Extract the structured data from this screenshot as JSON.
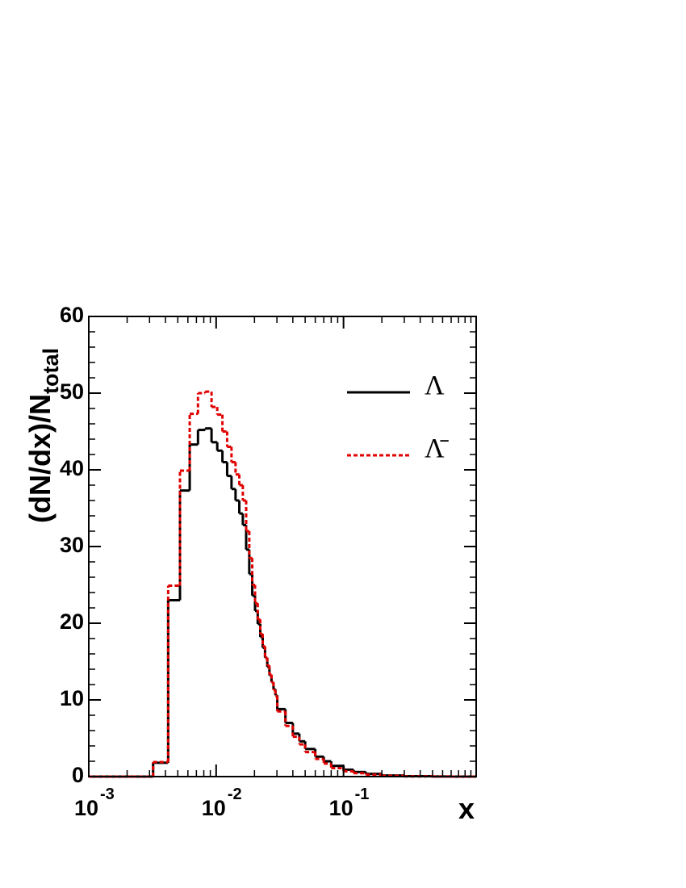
{
  "chart_data": {
    "type": "histogram",
    "xlabel": "x",
    "ylabel": {
      "text": "(dN/dx)/N",
      "subscript": "total"
    },
    "xlog": true,
    "xlim": [
      0.001,
      1.1
    ],
    "xticks": [
      {
        "value": 0.001,
        "label": "10",
        "exponent": "-3"
      },
      {
        "value": 0.01,
        "label": "10",
        "exponent": "-2"
      },
      {
        "value": 0.1,
        "label": "10",
        "exponent": "-1"
      }
    ],
    "xminorticks": [
      0.002,
      0.003,
      0.004,
      0.005,
      0.006,
      0.007,
      0.008,
      0.009,
      0.02,
      0.03,
      0.04,
      0.05,
      0.06,
      0.07,
      0.08,
      0.09,
      0.2,
      0.3,
      0.4,
      0.5,
      0.6,
      0.7,
      0.8,
      0.9,
      1
    ],
    "ylim": [
      0,
      60
    ],
    "yticks": [
      0,
      10,
      20,
      30,
      40,
      50,
      60
    ],
    "yminorticks": [
      2,
      4,
      6,
      8,
      12,
      14,
      16,
      18,
      22,
      24,
      26,
      28,
      32,
      34,
      36,
      38,
      42,
      44,
      46,
      48,
      52,
      54,
      56,
      58
    ],
    "legend": "upper right",
    "bins": [
      0.001,
      0.0022,
      0.0032,
      0.0042,
      0.0052,
      0.0062,
      0.0072,
      0.0082,
      0.0092,
      0.0102,
      0.0112,
      0.0122,
      0.0132,
      0.0142,
      0.0152,
      0.0162,
      0.0172,
      0.0182,
      0.0192,
      0.0202,
      0.0212,
      0.0222,
      0.0232,
      0.0242,
      0.0252,
      0.0262,
      0.0272,
      0.0282,
      0.0292,
      0.0302,
      0.035,
      0.04,
      0.045,
      0.05,
      0.06,
      0.07,
      0.08,
      0.1,
      0.12,
      0.15,
      0.2,
      0.3,
      0.5,
      0.7,
      1.1
    ],
    "series": [
      {
        "name": "Λ",
        "color": "#000000",
        "dashed": false,
        "values": [
          0,
          0,
          1.8,
          23.0,
          37.3,
          43.3,
          45.2,
          45.4,
          43.6,
          42.5,
          41.0,
          39.2,
          37.5,
          36.0,
          34.3,
          32.8,
          29.6,
          26.4,
          23.6,
          21.6,
          19.9,
          18.2,
          16.8,
          15.5,
          14.3,
          13.2,
          12.3,
          11.4,
          10.6,
          8.8,
          7.0,
          5.6,
          4.6,
          3.6,
          2.6,
          2.0,
          1.4,
          0.9,
          0.6,
          0.35,
          0.15,
          0.05,
          0.01,
          0
        ]
      },
      {
        "name": "Λ̄",
        "color": "#e00000",
        "dashed": true,
        "values": [
          0,
          0,
          1.9,
          24.9,
          39.9,
          47.3,
          50.0,
          50.2,
          48.2,
          47.2,
          45.0,
          43.0,
          41.0,
          39.4,
          38.0,
          36.0,
          32.0,
          28.5,
          25.0,
          22.6,
          20.5,
          18.6,
          17.0,
          15.5,
          14.5,
          13.3,
          12.3,
          11.3,
          10.5,
          8.5,
          6.6,
          5.2,
          4.2,
          3.2,
          2.3,
          1.7,
          1.1,
          0.7,
          0.45,
          0.25,
          0.1,
          0.03,
          0.01,
          0
        ]
      }
    ]
  }
}
